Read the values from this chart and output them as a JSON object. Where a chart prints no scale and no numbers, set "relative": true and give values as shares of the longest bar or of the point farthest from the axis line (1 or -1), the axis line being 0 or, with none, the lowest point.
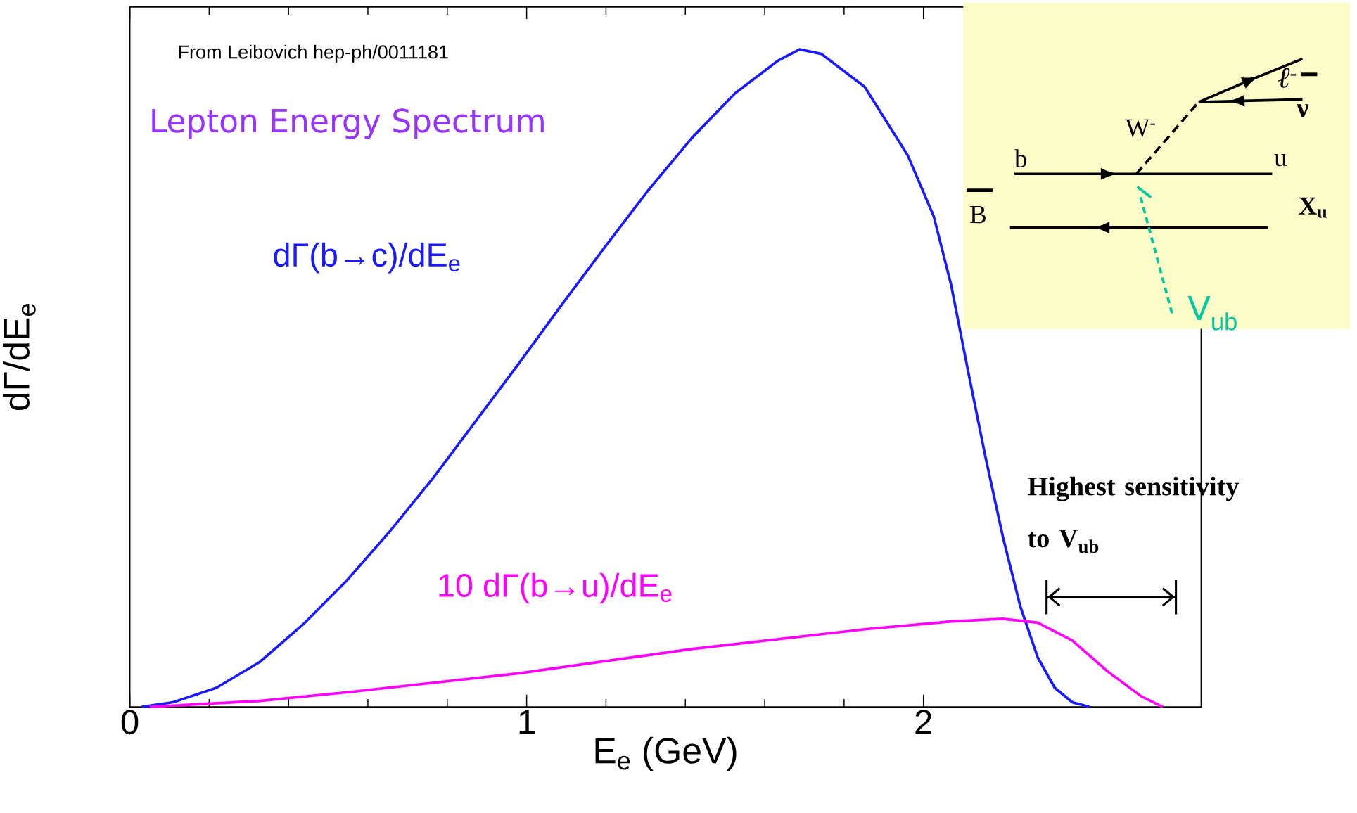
{
  "chart_data": {
    "type": "line",
    "relative": true,
    "xlabel": "E$_{e}$ (GeV)",
    "ylabel": "dΓ/dE$_{e}$",
    "xlim": [
      0,
      2.7
    ],
    "xticks": [
      0,
      1,
      2
    ],
    "series": [
      {
        "name": "dΓ(b→c)/dE$_{e}$",
        "color": "#1a1aff",
        "x": [
          0.03,
          0.109,
          0.218,
          0.327,
          0.436,
          0.545,
          0.654,
          0.763,
          0.871,
          0.98,
          1.089,
          1.198,
          1.307,
          1.416,
          1.525,
          1.634,
          1.688,
          1.743,
          1.852,
          1.961,
          2.026,
          2.07,
          2.113,
          2.157,
          2.2,
          2.244,
          2.288,
          2.331,
          2.375,
          2.418
        ],
        "values": [
          0,
          0.007,
          0.029,
          0.068,
          0.125,
          0.191,
          0.266,
          0.347,
          0.434,
          0.522,
          0.612,
          0.7,
          0.786,
          0.865,
          0.933,
          0.983,
          1,
          0.993,
          0.943,
          0.838,
          0.746,
          0.641,
          0.509,
          0.378,
          0.259,
          0.153,
          0.075,
          0.029,
          0.007,
          0
        ]
      },
      {
        "name": "10 dΓ(b→u)/dE$_{e}$",
        "color": "#ff00ff",
        "x": [
          0.05,
          0.327,
          0.545,
          0.98,
          1.416,
          1.852,
          2.07,
          2.2,
          2.288,
          2.375,
          2.462,
          2.549,
          2.603
        ],
        "values": [
          0,
          0.009,
          0.022,
          0.051,
          0.088,
          0.118,
          0.13,
          0.134,
          0.128,
          0.101,
          0.055,
          0.016,
          0
        ]
      }
    ],
    "annotations": [
      "From Leibovich hep-ph/0011181",
      "Lepton Energy Spectrum",
      "b",
      "u",
      "B",
      "X$_{u}$",
      "W$^{-}$",
      "ℓ$^{-}$",
      "ν",
      "V$_{ub}$",
      "Highest sensitivity to V$_{ub}$"
    ]
  }
}
